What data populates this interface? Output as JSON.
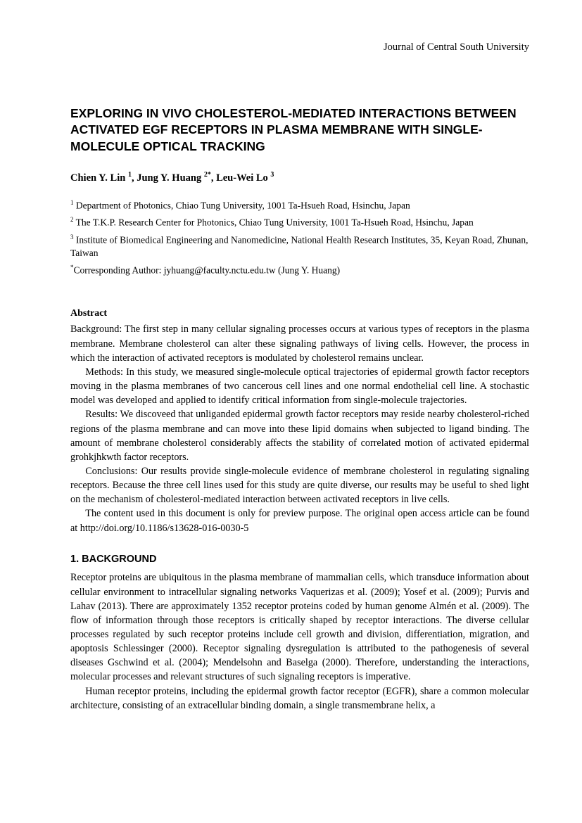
{
  "journal": "Journal of Central South University",
  "title": "EXPLORING IN VIVO CHOLESTEROL-MEDIATED INTERACTIONS BETWEEN ACTIVATED EGF RECEPTORS IN PLASMA MEMBRANE WITH SINGLE-MOLECULE OPTICAL TRACKING",
  "authors_html": "Chien Y. Lin <sup>1</sup>, Jung Y. Huang <sup>2*</sup>, Leu-Wei Lo <sup>3</sup>",
  "affiliations": [
    "<sup>1</sup> Department of Photonics, Chiao Tung University, 1001 Ta-Hsueh Road, Hsinchu, Japan",
    "<sup>2</sup> The T.K.P. Research Center for Photonics, Chiao Tung University, 1001 Ta-Hsueh Road, Hsinchu, Japan",
    "<sup>3</sup> Institute of Biomedical Engineering and Nanomedicine, National Health Research Institutes, 35, Keyan Road, Zhunan, Taiwan"
  ],
  "corresponding": "<sup>*</sup>Corresponding Author: jyhuang@faculty.nctu.edu.tw (Jung Y. Huang)",
  "abstract_heading": "Abstract",
  "abstract_paragraphs": [
    "Background: The first step in many cellular signaling processes occurs at various types of receptors in the plasma membrane. Membrane cholesterol can alter these signaling pathways of living cells. However, the process in which the interaction of activated receptors is modulated by cholesterol remains unclear.",
    "Methods: In this study, we measured single-molecule optical trajectories of epidermal growth factor receptors moving in the plasma membranes of two cancerous cell lines and one normal endothelial cell line. A stochastic model was developed and applied to identify critical information from single-molecule trajectories.",
    "Results: We discoveed that unliganded epidermal growth factor receptors may reside nearby cholesterol-riched regions of the plasma membrane and can move into these lipid domains when subjected to ligand binding. The amount of membrane cholesterol considerably affects the stability of correlated motion of activated epidermal grohkjhkwth factor receptors.",
    "Conclusions: Our results provide single-molecule evidence of membrane cholesterol in regulating signaling receptors. Because the three cell lines used for this study are quite diverse, our results may be useful to shed light on the mechanism of cholesterol-mediated interaction between activated receptors in live cells.",
    "The content used in this document is only for preview purpose. The original open access article can be found at http://doi.org/10.1186/s13628-016-0030-5"
  ],
  "section1_heading": "1. BACKGROUND",
  "section1_paragraphs": [
    "Receptor proteins are ubiquitous in the plasma membrane of mammalian cells, which transduce information about cellular environment to intracellular signaling networks Vaquerizas et al. (2009); Yosef et al. (2009); Purvis and Lahav (2013). There are approximately 1352 receptor proteins coded by human genome Almén et al. (2009). The flow of information through those receptors is critically shaped by receptor interactions. The diverse cellular processes regulated by such receptor proteins include cell growth and division, differentiation, migration, and apoptosis Schlessinger (2000). Receptor signaling dysregulation is attributed to the pathogenesis of several diseases Gschwind et al. (2004); Mendelsohn and Baselga (2000). Therefore, understanding the interactions, molecular processes and relevant structures of such signaling receptors is imperative.",
    "Human receptor proteins, including the epidermal growth factor receptor (EGFR), share a common molecular architecture, consisting of an extracellular binding domain, a single transmembrane helix, a"
  ]
}
